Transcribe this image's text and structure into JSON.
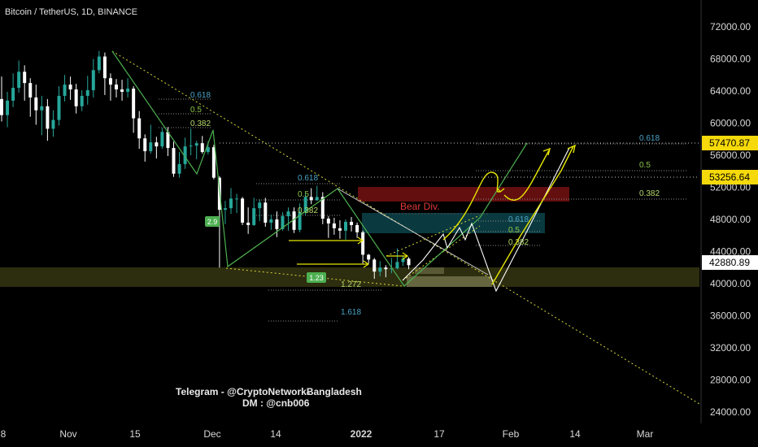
{
  "header": {
    "title": "Bitcoin / TetherUS, 1D, BINANCE"
  },
  "watermark": {
    "line1": "Telegram - @CryptoNetworkɃangladesh",
    "line2": "DM  : @cnb006"
  },
  "annotation": {
    "bear_div": "Bear Div."
  },
  "chart_data": {
    "type": "candlestick",
    "title": "Bitcoin / TetherUS, 1D, BINANCE",
    "y_axis": {
      "ticks": [
        "72000.00",
        "68000.00",
        "64000.00",
        "60000.00",
        "56000.00",
        "52000.00",
        "48000.00",
        "44000.00",
        "40000.00",
        "36000.00",
        "32000.00",
        "28000.00",
        "24000.00"
      ],
      "ylim": [
        22000,
        75500
      ]
    },
    "x_axis": {
      "ticks": [
        "8",
        "Nov",
        "15",
        "Dec",
        "14",
        "2022",
        "17",
        "Feb",
        "14",
        "Mar"
      ],
      "bold": [
        "2022"
      ]
    },
    "price_tags": [
      {
        "value": "57470.87",
        "style": "yellow"
      },
      {
        "value": "53256.64",
        "style": "yellow"
      },
      {
        "value": "42880.89",
        "style": "white"
      }
    ],
    "fib_labels": {
      "top": [
        "0.618",
        "0.5",
        "0.382"
      ],
      "mid": [
        "0.618",
        "0.5",
        "0.382"
      ],
      "right": [
        "0.618",
        "0.5",
        "0.382"
      ],
      "box": [
        "0.618",
        "0.5",
        "0.382"
      ],
      "ext": [
        "1.272",
        "1.618"
      ]
    },
    "wave_badges": [
      "2.9",
      "1.23"
    ],
    "colors": {
      "up": "#26a69a",
      "down": "#ffffff",
      "background": "#000000",
      "accent_green": "#4caf50",
      "accent_yellow": "#e6e600",
      "bear_div": "#e53935"
    },
    "candles": [
      [
        63000,
        61000,
        65800,
        60200
      ],
      [
        61000,
        62800,
        63900,
        59500
      ],
      [
        62800,
        64400,
        66200,
        62000
      ],
      [
        64400,
        66400,
        67800,
        63800
      ],
      [
        66400,
        65000,
        67200,
        62800
      ],
      [
        65000,
        63200,
        65600,
        60800
      ],
      [
        63200,
        61600,
        64800,
        59800
      ],
      [
        61600,
        62100,
        63400,
        58500
      ],
      [
        62100,
        59300,
        63000,
        57800
      ],
      [
        59300,
        60400,
        61600,
        58300
      ],
      [
        60400,
        63400,
        64600,
        59700
      ],
      [
        63400,
        64800,
        66000,
        62700
      ],
      [
        64800,
        64200,
        65800,
        62900
      ],
      [
        64200,
        62100,
        64900,
        61200
      ],
      [
        62100,
        63400,
        64100,
        61500
      ],
      [
        63400,
        64100,
        65900,
        62300
      ],
      [
        64100,
        66600,
        68000,
        63200
      ],
      [
        66600,
        68300,
        69000,
        66200
      ],
      [
        68300,
        65600,
        68800,
        63500
      ],
      [
        65600,
        64800,
        66200,
        62800
      ],
      [
        64800,
        64200,
        65500,
        63200
      ],
      [
        64200,
        63900,
        65400,
        62800
      ],
      [
        63900,
        64300,
        65600,
        63200
      ],
      [
        64300,
        60600,
        64600,
        58800
      ],
      [
        60600,
        58100,
        61500,
        56800
      ],
      [
        58100,
        56500,
        58600,
        55200
      ],
      [
        56500,
        57600,
        59800,
        56200
      ],
      [
        57600,
        57100,
        58300,
        55600
      ],
      [
        57100,
        58900,
        59400,
        56800
      ],
      [
        58900,
        56900,
        59500,
        55900
      ],
      [
        56900,
        53700,
        57700,
        53300
      ],
      [
        53700,
        54900,
        56400,
        53200
      ],
      [
        54900,
        57100,
        58200,
        54300
      ],
      [
        57100,
        57200,
        59300,
        56000
      ],
      [
        57200,
        57500,
        57800,
        55500
      ],
      [
        57500,
        56400,
        58400,
        56200
      ],
      [
        56400,
        57000,
        57700,
        56100
      ],
      [
        57000,
        53200,
        57300,
        53000
      ],
      [
        53200,
        49200,
        53400,
        42000
      ],
      [
        49200,
        49400,
        50300,
        47400
      ],
      [
        49400,
        50600,
        51900,
        48700
      ],
      [
        50600,
        50600,
        51200,
        48800
      ],
      [
        50600,
        47600,
        50800,
        47300
      ],
      [
        47600,
        47300,
        49500,
        46200
      ],
      [
        47300,
        49400,
        50700,
        47200
      ],
      [
        49400,
        50100,
        50500,
        47800
      ],
      [
        50100,
        47600,
        50700,
        47100
      ],
      [
        47600,
        48000,
        48600,
        46700
      ],
      [
        48000,
        46800,
        49000,
        45800
      ],
      [
        46800,
        48400,
        48900,
        46600
      ],
      [
        48400,
        49000,
        49500,
        46600
      ],
      [
        49000,
        46700,
        49500,
        46300
      ],
      [
        46700,
        48900,
        50000,
        46400
      ],
      [
        48900,
        50800,
        51300,
        48500
      ],
      [
        50800,
        50400,
        51900,
        49900
      ],
      [
        50400,
        50800,
        52200,
        50300
      ],
      [
        50800,
        48100,
        51400,
        47400
      ],
      [
        48100,
        47500,
        48400,
        45700
      ],
      [
        47500,
        46900,
        48200,
        46100
      ],
      [
        46900,
        46600,
        47900,
        45600
      ],
      [
        46600,
        47700,
        48000,
        45500
      ],
      [
        47700,
        47300,
        48300,
        46500
      ],
      [
        47300,
        46400,
        47600,
        45700
      ],
      [
        46400,
        43600,
        46600,
        42500
      ],
      [
        43600,
        43000,
        43700,
        42500
      ],
      [
        43000,
        41500,
        43200,
        40600
      ],
      [
        41500,
        42000,
        42800,
        40900
      ],
      [
        42000,
        41800,
        42300,
        40800
      ],
      [
        41800,
        41900,
        43200,
        41300
      ],
      [
        41900,
        42700,
        44400,
        41800
      ],
      [
        42700,
        43100,
        43500,
        42200
      ],
      [
        43100,
        42300,
        43300,
        41800
      ]
    ]
  }
}
